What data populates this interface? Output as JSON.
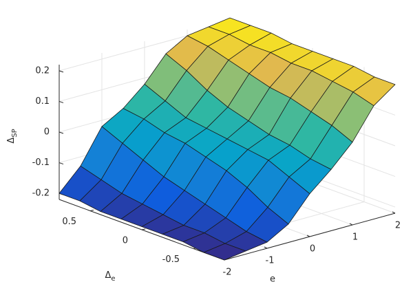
{
  "chart_data": {
    "type": "surface",
    "colormap": "parula",
    "grid": true,
    "xlabel": "e",
    "ylabel": [
      "Δ",
      "e"
    ],
    "zlabel": [
      "Δ",
      "SP"
    ],
    "x": [
      -2,
      -1.5,
      -1,
      -0.5,
      0,
      0.5,
      1,
      1.5,
      2
    ],
    "y": [
      -0.8,
      -0.6,
      -0.4,
      -0.2,
      0,
      0.2,
      0.4,
      0.6,
      0.8
    ],
    "z": [
      [
        -0.22,
        -0.21,
        -0.2,
        -0.16,
        -0.08,
        -0.02,
        0.05,
        0.15,
        0.2
      ],
      [
        -0.22,
        -0.21,
        -0.19,
        -0.13,
        -0.05,
        -0.01,
        0.08,
        0.17,
        0.2
      ],
      [
        -0.21,
        -0.2,
        -0.17,
        -0.09,
        -0.02,
        0.01,
        0.1,
        0.18,
        0.21
      ],
      [
        -0.21,
        -0.2,
        -0.15,
        -0.06,
        -0.01,
        0.02,
        0.12,
        0.19,
        0.21
      ],
      [
        -0.21,
        -0.19,
        -0.13,
        -0.04,
        0,
        0.04,
        0.13,
        0.19,
        0.21
      ],
      [
        -0.21,
        -0.18,
        -0.11,
        -0.02,
        0.01,
        0.06,
        0.15,
        0.2,
        0.21
      ],
      [
        -0.21,
        -0.17,
        -0.08,
        -0.01,
        0.02,
        0.09,
        0.17,
        0.2,
        0.22
      ],
      [
        -0.2,
        -0.15,
        -0.05,
        0.01,
        0.05,
        0.13,
        0.19,
        0.21,
        0.22
      ],
      [
        -0.2,
        -0.13,
        -0.02,
        0.02,
        0.08,
        0.16,
        0.2,
        0.21,
        0.22
      ]
    ],
    "xlim": [
      -2,
      2
    ],
    "ylim": [
      -0.8,
      0.8
    ],
    "zlim": [
      -0.22,
      0.22
    ],
    "xticks": [
      -2,
      -1,
      0,
      1,
      2
    ],
    "yticks": [
      -0.5,
      0,
      0.5
    ],
    "zticks": [
      -0.2,
      -0.1,
      0,
      0.1,
      0.2
    ]
  }
}
